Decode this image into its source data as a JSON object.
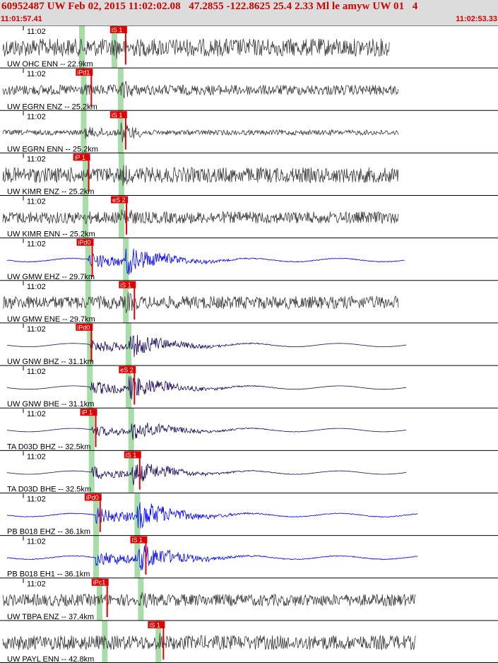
{
  "header": {
    "title": "60952487 UW Feb 02, 2015 11:02:02.08   47.2855 -122.8625 25.4 2.33 Ml le amyw UW 01   4",
    "start_time": "11:01:57.41",
    "end_time": "11:02:53.33"
  },
  "colors": {
    "header_bg": "#dcdcdc",
    "header_text": "#d00000",
    "trace_dark": "#3a3a3a",
    "trace_blue": "#0000ff",
    "trace_navy": "#1a0a5a",
    "pick_red": "#e00000",
    "p_band": "#a8dca8",
    "s_band": "#a8dca8"
  },
  "chart_data": {
    "type": "seismogram",
    "time_range": [
      "11:01:57.41",
      "11:02:53.33"
    ],
    "traces": [
      {
        "time_label": "11:02",
        "label": "UW OHC ENN -- 22.9km",
        "color": "dark",
        "pick": "iS 1",
        "pick_t": 12.2,
        "p_t": 9.0,
        "s_t": 12.7,
        "end_t": 44.0,
        "amp": 0.62,
        "noise": 0.42,
        "shape": "noisy"
      },
      {
        "time_label": "11:02",
        "label": "UW EGRN ENZ -- 25.2km",
        "color": "dark",
        "pick": "iPd1",
        "pick_t": 8.3,
        "p_t": 9.2,
        "s_t": 13.4,
        "end_t": 45.0,
        "amp": 0.55,
        "noise": 0.24,
        "shape": "noisy"
      },
      {
        "time_label": "11:02",
        "label": "UW EGRN ENN -- 25.2km",
        "color": "dark",
        "pick": "iS 1",
        "pick_t": 12.2,
        "p_t": 9.2,
        "s_t": 13.4,
        "end_t": 45.0,
        "amp": 0.55,
        "noise": 0.12,
        "shape": "noisy"
      },
      {
        "time_label": "11:02",
        "label": "UW KIMR ENZ -- 25.2km",
        "color": "dark",
        "pick": "iP 1",
        "pick_t": 8.0,
        "p_t": 9.4,
        "s_t": 13.5,
        "end_t": 45.0,
        "amp": 0.6,
        "noise": 0.36,
        "shape": "noisy"
      },
      {
        "time_label": "11:02",
        "label": "UW KIMR ENN -- 25.2km",
        "color": "dark",
        "pick": "eS 2",
        "pick_t": 12.3,
        "p_t": 9.4,
        "s_t": 13.5,
        "end_t": 45.0,
        "amp": 0.6,
        "noise": 0.28,
        "shape": "noisy"
      },
      {
        "time_label": "11:02",
        "label": "UW GMW EHZ -- 29.7km",
        "color": "blue",
        "pick": "iPd0",
        "pick_t": 8.4,
        "p_t": 9.7,
        "s_t": 14.0,
        "end_t": 45.7,
        "amp": 0.7,
        "noise": 0.02,
        "shape": "event"
      },
      {
        "time_label": "11:02",
        "label": "UW GMW ENE -- 29.7km",
        "color": "dark",
        "pick": "iS 1",
        "pick_t": 13.2,
        "p_t": 9.7,
        "s_t": 14.0,
        "end_t": 45.0,
        "amp": 0.55,
        "noise": 0.3,
        "shape": "noisy"
      },
      {
        "time_label": "11:02",
        "label": "UW GNW BHZ -- 31.1km",
        "color": "navy",
        "pick": "iPd0",
        "pick_t": 8.3,
        "p_t": 9.9,
        "s_t": 14.3,
        "end_t": 45.9,
        "amp": 0.62,
        "noise": 0.0,
        "shape": "long"
      },
      {
        "time_label": "11:02",
        "label": "UW GNW BHE -- 31.1km",
        "color": "navy",
        "pick": "eS 2",
        "pick_t": 13.2,
        "p_t": 9.9,
        "s_t": 14.3,
        "end_t": 45.9,
        "amp": 0.62,
        "noise": 0.0,
        "shape": "long"
      },
      {
        "time_label": "11:02",
        "label": "TA D03D BHZ -- 32.5km",
        "color": "navy",
        "pick": "iP 1",
        "pick_t": 8.8,
        "p_t": 10.1,
        "s_t": 14.6,
        "end_t": 45.9,
        "amp": 0.5,
        "noise": 0.0,
        "shape": "long"
      },
      {
        "time_label": "11:02",
        "label": "TA D03D BHE -- 32.5km",
        "color": "navy",
        "pick": "iS 1",
        "pick_t": 13.8,
        "p_t": 10.1,
        "s_t": 14.6,
        "end_t": 45.9,
        "amp": 0.6,
        "noise": 0.0,
        "shape": "long"
      },
      {
        "time_label": "11:02",
        "label": "PB B018 EHZ -- 36.1km",
        "color": "blue",
        "pick": "iPd0",
        "pick_t": 9.3,
        "p_t": 10.6,
        "s_t": 15.3,
        "end_t": 47.2,
        "amp": 0.72,
        "noise": 0.02,
        "shape": "event"
      },
      {
        "time_label": "11:02",
        "label": "PB B018 EH1 -- 36.1km",
        "color": "blue",
        "pick": "iS 1",
        "pick_t": 14.5,
        "p_t": 10.6,
        "s_t": 15.3,
        "end_t": 47.2,
        "amp": 0.7,
        "noise": 0.02,
        "shape": "event"
      },
      {
        "time_label": "11:02",
        "label": "UW TBPA ENZ -- 37.4km",
        "color": "dark",
        "pick": "iPc1",
        "pick_t": 10.1,
        "p_t": 11.0,
        "s_t": 15.7,
        "end_t": 47.0,
        "amp": 0.5,
        "noise": 0.28,
        "shape": "noisy"
      },
      {
        "time_label": "",
        "label": "UW PAYL ENN -- 42.8km",
        "color": "dark",
        "pick": "iS 1",
        "pick_t": 16.5,
        "p_t": 11.6,
        "s_t": 17.7,
        "end_t": 47.0,
        "amp": 0.5,
        "noise": 0.34,
        "shape": "noisy"
      }
    ]
  }
}
